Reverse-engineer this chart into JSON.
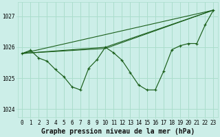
{
  "bg_color": "#cceee8",
  "grid_color": "#aaddcc",
  "line_color": "#1a5e1a",
  "title": "Graphe pression niveau de la mer (hPa)",
  "ylim": [
    1023.75,
    1027.45
  ],
  "yticks": [
    1024,
    1025,
    1026,
    1027
  ],
  "xlim": [
    -0.5,
    23.5
  ],
  "xticks": [
    0,
    1,
    2,
    3,
    4,
    5,
    6,
    7,
    8,
    9,
    10,
    11,
    12,
    13,
    14,
    15,
    16,
    17,
    18,
    19,
    20,
    21,
    22,
    23
  ],
  "hours": [
    0,
    1,
    2,
    3,
    4,
    5,
    6,
    7,
    8,
    9,
    10,
    11,
    12,
    13,
    14,
    15,
    16,
    17,
    18,
    19,
    20,
    21,
    22,
    23
  ],
  "pressure": [
    1025.8,
    1025.9,
    1025.65,
    1025.55,
    1025.28,
    1025.05,
    1024.72,
    1024.62,
    1025.32,
    1025.6,
    1026.0,
    1025.82,
    1025.58,
    1025.18,
    1024.78,
    1024.62,
    1024.62,
    1025.22,
    1025.92,
    1026.05,
    1026.12,
    1026.12,
    1026.72,
    1027.2
  ],
  "ref_line1_x": [
    0,
    23
  ],
  "ref_line1_y": [
    1025.8,
    1027.2
  ],
  "ref_line2_x": [
    0,
    10,
    23
  ],
  "ref_line2_y": [
    1025.8,
    1026.0,
    1027.2
  ],
  "ref_line3_x": [
    0,
    10,
    23
  ],
  "ref_line3_y": [
    1025.8,
    1025.96,
    1027.2
  ],
  "tick_fontsize": 5.5,
  "label_fontsize": 7,
  "label_fontweight": "bold"
}
